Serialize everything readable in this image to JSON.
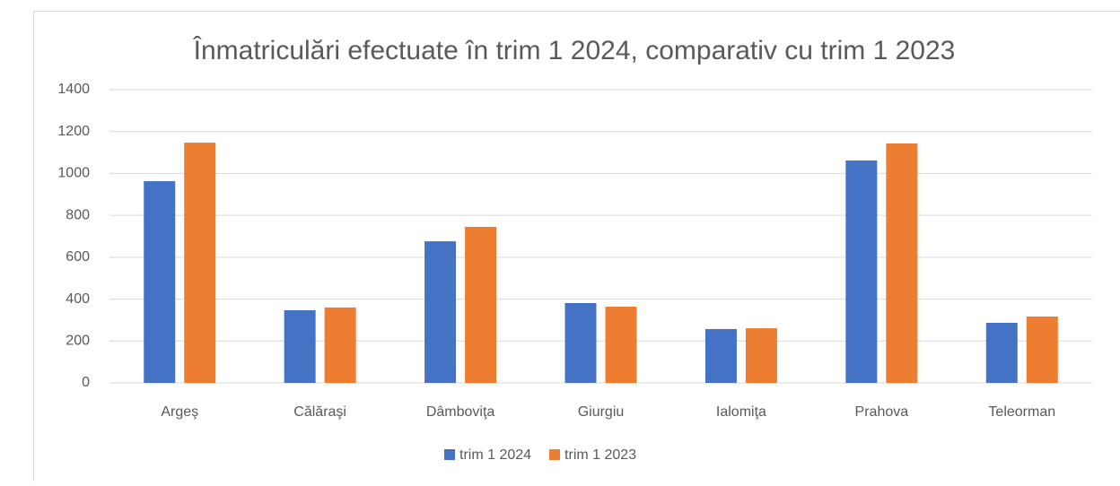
{
  "chart_data": {
    "type": "bar",
    "title": "Înmatriculări efectuate în trim 1 2024, comparativ cu trim 1 2023",
    "categories": [
      "Argeş",
      "Călăraşi",
      "Dâmboviţa",
      "Giurgiu",
      "Ialomiţa",
      "Prahova",
      "Teleorman"
    ],
    "series": [
      {
        "name": "trim 1 2024",
        "color": "#4472c4",
        "values": [
          963,
          347,
          676,
          381,
          257,
          1062,
          287
        ]
      },
      {
        "name": "trim 1 2023",
        "color": "#ed7d31",
        "values": [
          1147,
          360,
          745,
          364,
          261,
          1143,
          317
        ]
      }
    ],
    "ylim": [
      0,
      1400
    ],
    "yticks": [
      0,
      200,
      400,
      600,
      800,
      1000,
      1200,
      1400
    ],
    "grid": true,
    "legend": "bottom"
  }
}
